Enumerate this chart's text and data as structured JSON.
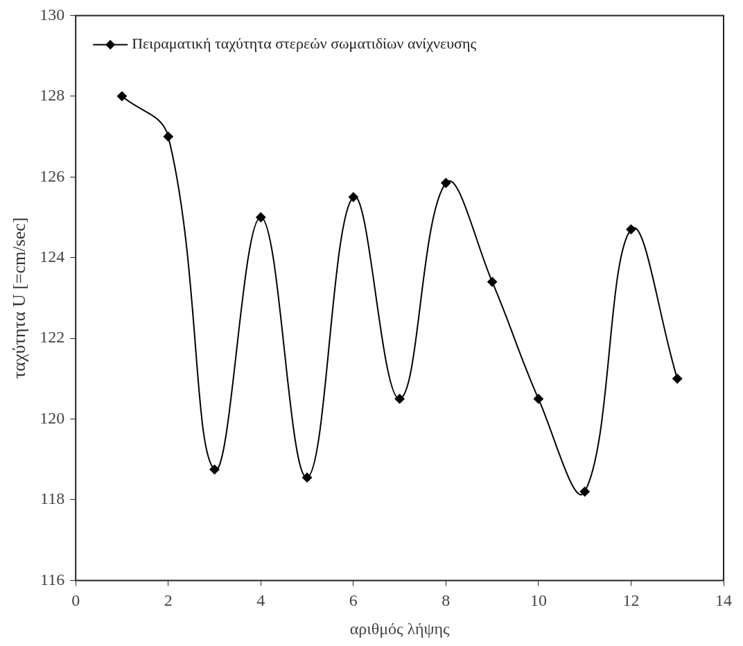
{
  "chart_data": {
    "type": "line",
    "xlabel": "αριθμός λήψης",
    "ylabel": "ταχύτητα U [=cm/sec]",
    "x": [
      1,
      2,
      3,
      4,
      5,
      6,
      7,
      8,
      9,
      10,
      11,
      12,
      13
    ],
    "series": [
      {
        "name": "Πειραματική ταχύτητα στερεών σωματιδίων ανίχνευσης",
        "color": "#000000",
        "values": [
          128.0,
          127.0,
          118.75,
          125.0,
          118.55,
          125.5,
          120.5,
          125.85,
          123.4,
          120.5,
          118.2,
          124.7,
          121.0
        ]
      }
    ],
    "xlim": [
      0,
      14
    ],
    "xticks": [
      0,
      2,
      4,
      6,
      8,
      10,
      12,
      14
    ],
    "ylim": [
      116,
      130
    ],
    "yticks": [
      116,
      118,
      120,
      122,
      124,
      126,
      128,
      130
    ],
    "grid": false,
    "legend": "top left",
    "marker": "diamond",
    "line_style": "solid"
  }
}
